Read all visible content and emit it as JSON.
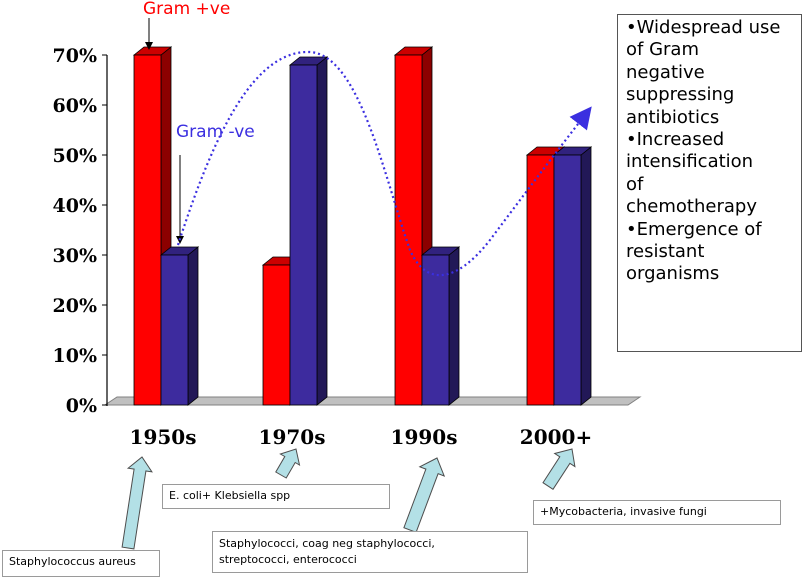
{
  "chart_data": {
    "type": "bar",
    "categories": [
      "1950s",
      "1970s",
      "1990s",
      "2000+"
    ],
    "series": [
      {
        "name": "Gram +ve",
        "values": [
          70,
          28,
          70,
          50
        ],
        "color": "#ff0000"
      },
      {
        "name": "Gram -ve",
        "values": [
          30,
          68,
          30,
          50
        ],
        "color": "#3d2b9e"
      }
    ],
    "ylim": [
      0,
      70
    ],
    "yticks": [
      "0%",
      "10%",
      "20%",
      "30%",
      "40%",
      "50%",
      "60%",
      "70%"
    ],
    "grid": false,
    "trend_line": {
      "style": "dotted",
      "color": "#3b2fe0"
    }
  },
  "annotations": {
    "gram_pos_label": "Gram +ve",
    "gram_neg_label": "Gram -ve",
    "label_color": "#ff0000",
    "neg_label_color": "#3b2fe0",
    "callout_arrow_color": "#b3e0e6"
  },
  "organisms": [
    {
      "text": "Staphylococcus aureus"
    },
    {
      "text": "E. coli+ Klebsiella spp"
    },
    {
      "lines": [
        "Staphylococci, coag neg staphylococci,",
        "streptococci, enterococci"
      ]
    },
    {
      "text": "+Mycobacteria, invasive fungi"
    }
  ],
  "info_box": {
    "lines": [
      "•Widespread use",
      "of Gram",
      "negative",
      "suppressing",
      "antibiotics",
      "•Increased",
      "intensification",
      "of",
      "chemotherapy",
      "•Emergence of",
      "resistant",
      "organisms"
    ]
  }
}
